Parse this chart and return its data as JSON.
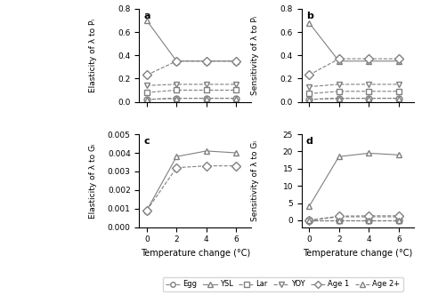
{
  "x": [
    0,
    2,
    4,
    6
  ],
  "panel_a": {
    "label": "a",
    "ylabel": "Elasticity of λ to Pᵢ",
    "ylim": [
      0,
      0.8
    ],
    "yticks": [
      0.0,
      0.2,
      0.4,
      0.6,
      0.8
    ],
    "series": {
      "Egg": [
        0.02,
        0.03,
        0.03,
        0.03
      ],
      "YSL": [
        0.7,
        0.35,
        0.35,
        0.35
      ],
      "Lar": [
        0.08,
        0.1,
        0.1,
        0.1
      ],
      "YOY": [
        0.14,
        0.15,
        0.15,
        0.15
      ],
      "Age1": [
        0.23,
        0.35,
        0.35,
        0.35
      ],
      "Age2": [
        0.02,
        0.03,
        0.03,
        0.03
      ]
    }
  },
  "panel_b": {
    "label": "b",
    "ylabel": "Sensitivity of λ to Pᵢ",
    "ylim": [
      0,
      0.8
    ],
    "yticks": [
      0.0,
      0.2,
      0.4,
      0.6,
      0.8
    ],
    "series": {
      "Egg": [
        0.02,
        0.03,
        0.03,
        0.03
      ],
      "YSL": [
        0.68,
        0.35,
        0.35,
        0.35
      ],
      "Lar": [
        0.07,
        0.09,
        0.09,
        0.09
      ],
      "YOY": [
        0.13,
        0.15,
        0.15,
        0.15
      ],
      "Age1": [
        0.23,
        0.37,
        0.37,
        0.37
      ],
      "Age2": [
        0.02,
        0.03,
        0.03,
        0.03
      ]
    }
  },
  "panel_c": {
    "label": "c",
    "ylabel": "Elasticity of λ to Gᵢ",
    "ylim": [
      0.0,
      0.005
    ],
    "yticks": [
      0.0,
      0.001,
      0.002,
      0.003,
      0.004,
      0.005
    ],
    "series": {
      "YSL": [
        0.0009,
        0.0038,
        0.0041,
        0.004
      ],
      "Age1": [
        0.0009,
        0.0032,
        0.0033,
        0.0033
      ]
    }
  },
  "panel_d": {
    "label": "d",
    "ylabel": "Sensitivity of λ to Gᵢ",
    "ylim": [
      -2,
      25
    ],
    "yticks": [
      0,
      5,
      10,
      15,
      20,
      25
    ],
    "series": {
      "Egg": [
        0.0,
        0.0,
        0.0,
        0.0
      ],
      "YSL": [
        4.0,
        18.5,
        19.5,
        19.0
      ],
      "Lar": [
        0.0,
        0.0,
        0.0,
        0.0
      ],
      "YOY": [
        0.0,
        1.0,
        1.0,
        1.0
      ],
      "Age1": [
        0.0,
        1.2,
        1.3,
        1.3
      ],
      "Age2": [
        0.0,
        0.0,
        0.0,
        0.0
      ]
    }
  },
  "series_styles": {
    "Egg": {
      "color": "#808080",
      "marker": "o",
      "ls": "--",
      "ms": 5,
      "mfc": "white"
    },
    "YSL": {
      "color": "#808080",
      "marker": "^",
      "ls": "-",
      "ms": 5,
      "mfc": "white"
    },
    "Lar": {
      "color": "#808080",
      "marker": "s",
      "ls": "--",
      "ms": 5,
      "mfc": "white"
    },
    "YOY": {
      "color": "#808080",
      "marker": "v",
      "ls": "--",
      "ms": 5,
      "mfc": "white"
    },
    "Age1": {
      "color": "#808080",
      "marker": "D",
      "ls": "--",
      "ms": 5,
      "mfc": "white"
    },
    "Age2": {
      "color": "#808080",
      "marker": "^",
      "ls": "--",
      "ms": 5,
      "mfc": "white"
    }
  },
  "legend_labels": [
    "Egg",
    "YSL",
    "Lar",
    "YOY",
    "Age 1",
    "Age 2+"
  ],
  "legend_keys": [
    "Egg",
    "YSL",
    "Lar",
    "YOY",
    "Age1",
    "Age2"
  ],
  "xlabel": "Temperature change (°C)",
  "figsize": [
    4.74,
    3.32
  ],
  "dpi": 100
}
